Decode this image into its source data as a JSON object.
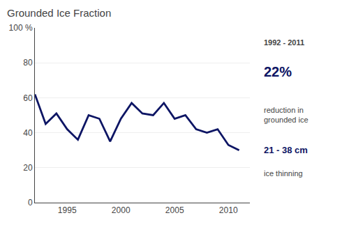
{
  "chart_data": {
    "type": "line",
    "title": "Grounded Ice Fraction",
    "x": [
      1992,
      1993,
      1994,
      1995,
      1996,
      1997,
      1998,
      1999,
      2000,
      2001,
      2002,
      2003,
      2004,
      2005,
      2006,
      2007,
      2008,
      2009,
      2010,
      2011
    ],
    "values": [
      62,
      45,
      51,
      42,
      36,
      50,
      48,
      35,
      48,
      57,
      51,
      50,
      57,
      48,
      50,
      42,
      40,
      42,
      33,
      30
    ],
    "color": "#0d1564",
    "xlim": [
      1992,
      2012
    ],
    "ylim": [
      0,
      100
    ],
    "xticks": [
      1995,
      2000,
      2005,
      2010
    ],
    "yticks": [
      0,
      20,
      40,
      60,
      80,
      {
        "value": 100,
        "label": "100 %"
      }
    ],
    "grid": "y",
    "annotations": [
      "1992 - 2011",
      "22%",
      "reduction in\ngrounded ice",
      "21 - 38 cm",
      "ice thinning"
    ]
  }
}
